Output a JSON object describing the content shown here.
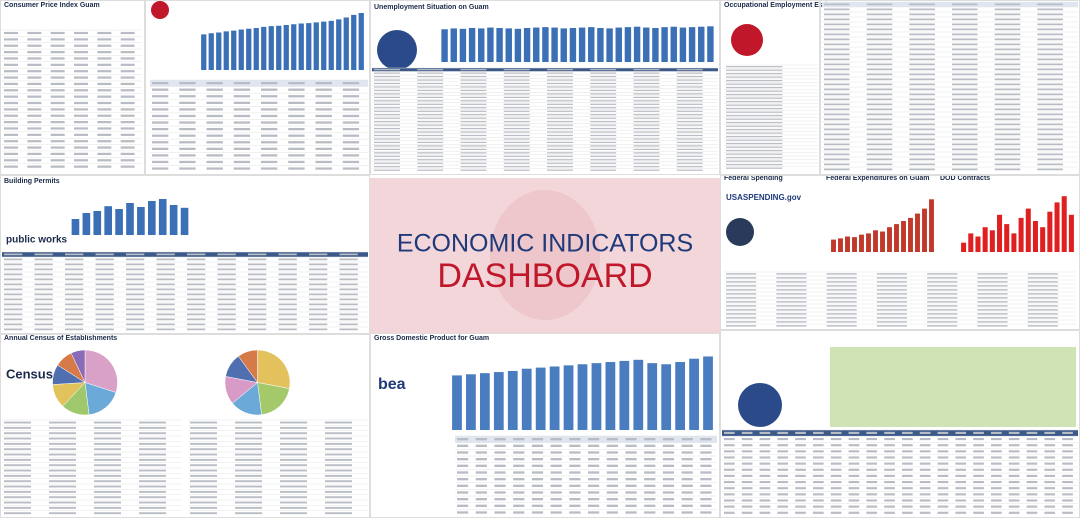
{
  "headline": {
    "line1": "ECONOMIC INDICATORS",
    "line2": "DASHBOARD"
  },
  "panels": [
    {
      "title": "Consumer Price Index Guam"
    },
    {
      "title": "Unemployment Situation on Guam"
    },
    {
      "title": "Occupational Employment Estimates"
    },
    {
      "title": "Building Permits"
    },
    {
      "title": "Federal Spending"
    },
    {
      "title": "Federal Expenditures on Guam"
    },
    {
      "title": "DOD Contracts"
    },
    {
      "title": "Annual Census of Establishments"
    },
    {
      "title": "Gross Domestic Product for Guam"
    }
  ],
  "logos": {
    "works": "public works",
    "census": "Census",
    "bea": "bea",
    "usa": "USASPENDING.gov"
  },
  "chart_data": [
    {
      "type": "bar",
      "color": "#3b6fb6",
      "ylim": [
        0,
        160
      ],
      "values": [
        95,
        98,
        100,
        103,
        105,
        108,
        110,
        112,
        115,
        117,
        118,
        120,
        122,
        124,
        125,
        127,
        129,
        131,
        135,
        140,
        147,
        152
      ]
    },
    {
      "type": "bar",
      "color": "#3b6fb6",
      "ylim": [
        0,
        100
      ],
      "values": [
        78,
        80,
        79,
        81,
        80,
        82,
        81,
        80,
        79,
        81,
        82,
        83,
        82,
        80,
        81,
        82,
        83,
        81,
        80,
        82,
        83,
        84,
        82,
        81,
        83,
        84,
        82,
        83,
        84,
        85
      ]
    },
    {
      "type": "bar",
      "color": "#4a7cc0",
      "ylim": [
        0,
        7
      ],
      "values": [
        4.9,
        5.0,
        5.1,
        5.2,
        5.3,
        5.5,
        5.6,
        5.7,
        5.8,
        5.9,
        6.0,
        6.1,
        6.2,
        6.3,
        6.0,
        5.9,
        6.1,
        6.4,
        6.6
      ]
    },
    {
      "type": "bar",
      "color": "#c0392b",
      "ylim": [
        0,
        100
      ],
      "values": [
        20,
        22,
        25,
        24,
        28,
        30,
        35,
        33,
        40,
        45,
        50,
        55,
        62,
        70,
        85
      ]
    },
    {
      "type": "bar",
      "color": "#e02020",
      "ylim": [
        0,
        100
      ],
      "values": [
        15,
        30,
        25,
        40,
        35,
        60,
        45,
        30,
        55,
        70,
        50,
        40,
        65,
        80,
        90,
        60
      ]
    },
    {
      "type": "bar",
      "color": "#3b6fb6",
      "ylim": [
        0,
        100
      ],
      "values": [
        40,
        55,
        60,
        72,
        65,
        80,
        70,
        85,
        90,
        75,
        68
      ]
    },
    {
      "type": "pie",
      "values": [
        30,
        18,
        14,
        12,
        10,
        9,
        7
      ],
      "colors": [
        "#d9a0c8",
        "#6aa9d8",
        "#9fc76b",
        "#e2c25a",
        "#4f6fb0",
        "#d67a4a",
        "#8a6bb8"
      ]
    },
    {
      "type": "pie",
      "values": [
        28,
        20,
        16,
        14,
        12,
        10
      ],
      "colors": [
        "#e3c15c",
        "#a3c96a",
        "#6aa9d8",
        "#d89ac6",
        "#4f6fb0",
        "#d67a4a"
      ]
    }
  ]
}
